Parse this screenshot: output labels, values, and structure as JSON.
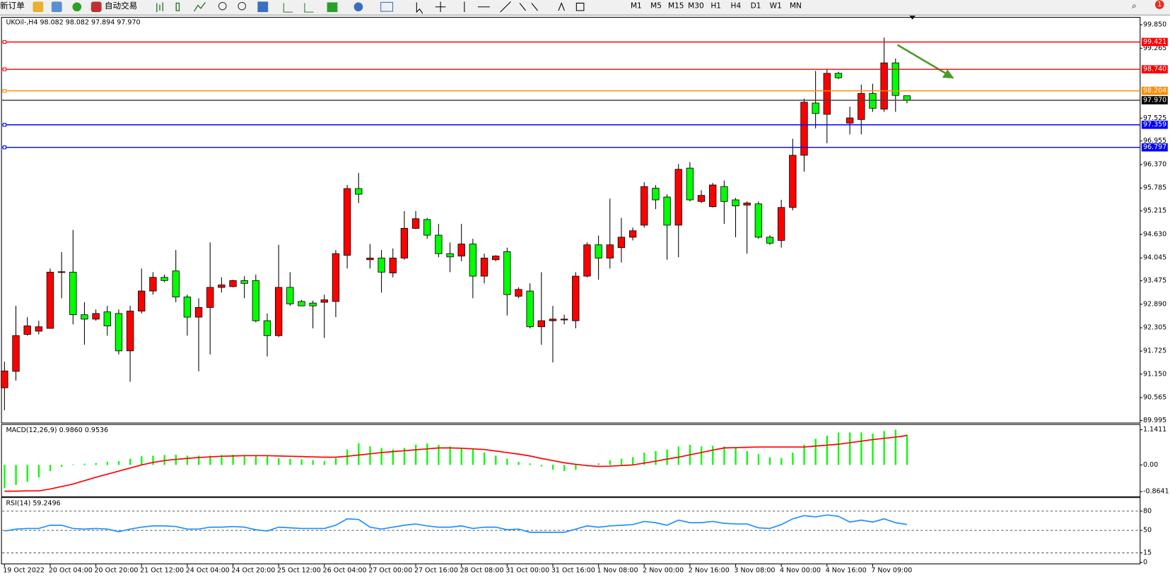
{
  "toolbar": {
    "new_order": "新订单",
    "auto_trading": "自动交易",
    "timeframes": [
      "M1",
      "M5",
      "M15",
      "M30",
      "H1",
      "H4",
      "D1",
      "W1",
      "MN"
    ],
    "badge": "1"
  },
  "chart_data": [
    {
      "type": "candlestick",
      "title": "UKOil-,H4  98.082 98.082 97.894 97.970",
      "categories": [
        "19 Oct 2022",
        null,
        null,
        null,
        "20 Oct 04:00",
        null,
        null,
        null,
        "20 Oct 20:00",
        null,
        null,
        null,
        "21 Oct 12:00",
        null,
        null,
        null,
        "24 Oct 04:00",
        null,
        null,
        null,
        "24 Oct 20:00",
        null,
        null,
        null,
        "25 Oct 12:00",
        null,
        null,
        null,
        "26 Oct 04:00",
        null,
        null,
        null,
        "27 Oct 00:00",
        null,
        null,
        null,
        "27 Oct 16:00",
        null,
        null,
        null,
        "28 Oct 08:00",
        null,
        null,
        null,
        "31 Oct 00:00",
        null,
        null,
        null,
        "31 Oct 16:00",
        null,
        null,
        null,
        "1 Nov 08:00",
        null,
        null,
        null,
        "2 Nov 00:00",
        null,
        null,
        null,
        "2 Nov 16:00",
        null,
        null,
        null,
        "3 Nov 08:00",
        null,
        null,
        null,
        "4 Nov 00:00",
        null,
        null,
        null,
        "4 Nov 16:00",
        null,
        null,
        null,
        "7 Nov 09:00",
        null,
        null,
        null
      ],
      "open": [
        90.81,
        91.22,
        92.14,
        92.22,
        92.29,
        93.69,
        93.69,
        92.63,
        92.52,
        92.7,
        92.66,
        91.73,
        92.72,
        93.22,
        93.56,
        93.72,
        93.07,
        92.57,
        92.81,
        93.31,
        93.33,
        93.48,
        93.48,
        92.48,
        92.11,
        93.31,
        92.96,
        92.92,
        92.94,
        92.96,
        94.11,
        95.77,
        94.0,
        94.04,
        93.67,
        94.04,
        94.78,
        95.0,
        94.61,
        94.15,
        94.09,
        94.39,
        93.59,
        94.0,
        94.2,
        93.09,
        93.22,
        92.33,
        92.48,
        92.5,
        92.48,
        93.59,
        94.37,
        94.04,
        94.3,
        94.56,
        94.86,
        95.78,
        95.56,
        94.86,
        96.28,
        95.45,
        95.32,
        95.82,
        95.49,
        95.36,
        95.39,
        94.56,
        94.48,
        95.3,
        96.6,
        97.9,
        97.62,
        98.64,
        97.4,
        97.49,
        98.14,
        97.75,
        98.9,
        98.082
      ],
      "high": [
        91.46,
        92.85,
        92.57,
        92.48,
        93.78,
        94.19,
        94.74,
        92.94,
        92.76,
        92.85,
        92.76,
        92.85,
        93.78,
        93.69,
        93.63,
        94.24,
        93.13,
        93.04,
        94.43,
        93.56,
        93.5,
        93.59,
        93.63,
        92.66,
        94.37,
        93.69,
        93.0,
        92.98,
        93.13,
        94.24,
        95.86,
        96.16,
        94.39,
        94.24,
        94.28,
        95.21,
        95.21,
        95.04,
        94.89,
        94.43,
        94.89,
        94.52,
        94.15,
        94.11,
        94.3,
        93.31,
        93.41,
        93.69,
        92.85,
        92.63,
        93.69,
        94.43,
        94.6,
        95.52,
        95.04,
        94.8,
        95.93,
        95.86,
        95.63,
        96.38,
        96.43,
        95.73,
        95.91,
        95.97,
        95.54,
        95.45,
        95.45,
        94.61,
        95.49,
        97.01,
        98.01,
        98.7,
        98.75,
        98.68,
        97.81,
        98.36,
        98.38,
        99.53,
        99.01,
        98.082
      ],
      "low": [
        90.25,
        90.99,
        92.11,
        92.14,
        92.29,
        93.04,
        92.39,
        91.88,
        92.48,
        92.11,
        91.64,
        90.96,
        92.66,
        93.13,
        93.44,
        92.94,
        92.11,
        91.22,
        91.64,
        93.18,
        93.31,
        93.04,
        92.44,
        91.59,
        92.07,
        92.85,
        92.85,
        92.29,
        92.05,
        92.57,
        93.78,
        95.41,
        93.78,
        93.18,
        93.56,
        94.0,
        94.76,
        94.52,
        94.06,
        93.69,
        93.96,
        93.04,
        93.41,
        93.96,
        92.61,
        93.04,
        92.29,
        91.88,
        91.44,
        92.39,
        92.29,
        93.56,
        93.5,
        93.78,
        93.93,
        94.48,
        94.8,
        95.26,
        94.0,
        94.06,
        95.45,
        95.41,
        95.3,
        94.89,
        94.56,
        94.15,
        94.52,
        94.37,
        94.3,
        95.23,
        96.19,
        97.27,
        96.9,
        98.5,
        97.12,
        97.12,
        97.68,
        97.68,
        97.68,
        97.894
      ],
      "close": [
        91.23,
        92.11,
        92.35,
        92.33,
        93.69,
        93.7,
        92.63,
        92.52,
        92.66,
        92.35,
        91.73,
        92.72,
        93.22,
        93.56,
        93.48,
        93.07,
        92.57,
        92.81,
        93.31,
        93.37,
        93.48,
        93.41,
        92.48,
        92.11,
        93.31,
        92.9,
        92.85,
        92.85,
        93.0,
        94.15,
        95.77,
        95.63,
        94.04,
        93.69,
        94.04,
        94.78,
        95.02,
        94.61,
        94.15,
        94.07,
        94.39,
        93.59,
        94.04,
        94.09,
        93.13,
        93.26,
        92.33,
        92.48,
        92.52,
        92.52,
        93.59,
        94.37,
        94.04,
        94.37,
        94.56,
        94.72,
        95.82,
        95.49,
        94.86,
        96.25,
        95.49,
        95.6,
        95.86,
        95.45,
        95.34,
        95.41,
        94.56,
        94.41,
        95.3,
        96.6,
        97.92,
        97.64,
        98.64,
        98.53,
        97.53,
        98.14,
        97.77,
        98.9,
        98.09,
        97.97
      ],
      "up_color": "#ff0000",
      "down_color": "#00ff00",
      "ylim": [
        89.952,
        100.017
      ],
      "yticks": [
        {
          "value": 99.85,
          "label": "99.850"
        },
        99.265,
        97.525,
        96.955,
        {
          "value": 96.37,
          "label": "96.370"
        },
        95.785,
        95.215,
        {
          "value": 94.63,
          "label": "94.630"
        },
        94.045,
        93.475,
        {
          "value": 92.89,
          "label": "92.890"
        },
        92.305,
        91.725,
        {
          "value": 91.15,
          "label": "91.150"
        },
        90.565,
        89.995
      ],
      "levels": [
        {
          "price": 99.421,
          "color": "#ff0000"
        },
        {
          "price": 98.74,
          "label": "98.740",
          "color": "#ff0000"
        },
        {
          "price": 98.204,
          "color": "#ff8c00"
        },
        {
          "price": 97.97,
          "label": "97.970",
          "color": "#000000"
        },
        {
          "price": 97.359,
          "color": "#0000ff"
        },
        {
          "price": 96.797,
          "color": "#0000ff"
        }
      ]
    },
    {
      "type": "macd",
      "title": "MACD(12,26,9) 0.9860 0.9536",
      "series": [
        {
          "style": "histogram",
          "color": "#00ff00",
          "values": [
            -0.75,
            -0.65,
            -0.55,
            -0.4,
            -0.2,
            -0.06,
            0.02,
            0.04,
            0.06,
            0.1,
            0.12,
            0.2,
            0.28,
            0.3,
            0.32,
            0.33,
            0.3,
            0.3,
            0.3,
            0.32,
            0.33,
            0.3,
            0.3,
            0.28,
            0.22,
            0.2,
            0.18,
            0.15,
            0.12,
            0.22,
            0.5,
            0.7,
            0.6,
            0.55,
            0.5,
            0.55,
            0.65,
            0.7,
            0.65,
            0.6,
            0.55,
            0.5,
            0.4,
            0.3,
            0.2,
            0.1,
            0.05,
            -0.05,
            -0.15,
            -0.2,
            -0.15,
            -0.05,
            0.05,
            0.15,
            0.2,
            0.25,
            0.4,
            0.45,
            0.5,
            0.6,
            0.65,
            0.6,
            0.62,
            0.6,
            0.55,
            0.45,
            0.35,
            0.25,
            0.22,
            0.4,
            0.65,
            0.85,
            0.95,
            1.05,
            1.05,
            1.05,
            1.02,
            1.1,
            1.14,
            0.986
          ]
        },
        {
          "style": "line",
          "color": "#ff0000",
          "values": [
            -0.85,
            -0.85,
            -0.84,
            -0.84,
            -0.78,
            -0.7,
            -0.62,
            -0.51,
            -0.4,
            -0.3,
            -0.2,
            -0.1,
            0.0,
            0.08,
            0.14,
            0.18,
            0.21,
            0.24,
            0.26,
            0.28,
            0.29,
            0.3,
            0.3,
            0.3,
            0.29,
            0.28,
            0.27,
            0.26,
            0.25,
            0.25,
            0.28,
            0.32,
            0.36,
            0.4,
            0.43,
            0.46,
            0.49,
            0.52,
            0.55,
            0.55,
            0.54,
            0.52,
            0.5,
            0.45,
            0.4,
            0.35,
            0.29,
            0.21,
            0.14,
            0.07,
            0.02,
            -0.02,
            -0.05,
            -0.04,
            -0.02,
            0.0,
            0.06,
            0.12,
            0.19,
            0.25,
            0.33,
            0.4,
            0.48,
            0.55,
            0.56,
            0.57,
            0.58,
            0.58,
            0.58,
            0.58,
            0.58,
            0.61,
            0.64,
            0.67,
            0.72,
            0.77,
            0.82,
            0.86,
            0.9,
            0.9536
          ]
        }
      ],
      "ylim": [
        -1.009,
        1.286
      ],
      "yticks": [
        1.1411,
        {
          "value": 0,
          "label": "0.00"
        },
        -0.8641
      ]
    },
    {
      "type": "rsi",
      "title": "RSI(14) 59.2496",
      "series": [
        {
          "style": "line",
          "color": "#1e90ff",
          "values": [
            49,
            52,
            53,
            53,
            58,
            58,
            53,
            52,
            53,
            52,
            48,
            52,
            55,
            57,
            57,
            56,
            52,
            52,
            55,
            55,
            56,
            55,
            51,
            49,
            55,
            54,
            53,
            53,
            53,
            58,
            68,
            67,
            55,
            52,
            55,
            58,
            60,
            57,
            55,
            55,
            57,
            53,
            55,
            55,
            51,
            52,
            47,
            47,
            47,
            47,
            52,
            57,
            55,
            57,
            58,
            59,
            64,
            62,
            58,
            66,
            62,
            62,
            64,
            61,
            60,
            60,
            54,
            53,
            59,
            68,
            73,
            71,
            74,
            72,
            63,
            66,
            63,
            68,
            62,
            59.2496
          ]
        }
      ],
      "ylim": [
        0,
        100
      ],
      "yticks": [
        80,
        50,
        15,
        0
      ]
    }
  ]
}
